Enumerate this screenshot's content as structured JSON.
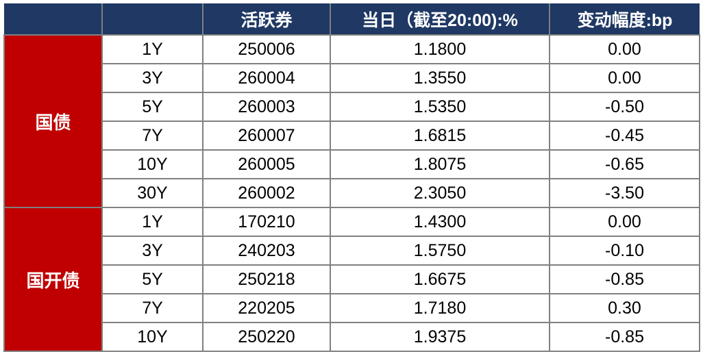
{
  "header": {
    "columns": [
      "",
      "",
      "活跃券",
      "当日（截至20:00):%",
      "变动幅度:bp"
    ]
  },
  "colors": {
    "header_bg": "#1f3864",
    "group_bg": "#c00000"
  },
  "groups": [
    {
      "name": "国债",
      "rows": [
        {
          "tenor": "1Y",
          "code": "250006",
          "yield": "1.1800",
          "change": "0.00"
        },
        {
          "tenor": "3Y",
          "code": "260004",
          "yield": "1.3550",
          "change": "0.00"
        },
        {
          "tenor": "5Y",
          "code": "260003",
          "yield": "1.5350",
          "change": "-0.50"
        },
        {
          "tenor": "7Y",
          "code": "260007",
          "yield": "1.6815",
          "change": "-0.45"
        },
        {
          "tenor": "10Y",
          "code": "260005",
          "yield": "1.8075",
          "change": "-0.65"
        },
        {
          "tenor": "30Y",
          "code": "260002",
          "yield": "2.3050",
          "change": "-3.50"
        }
      ]
    },
    {
      "name": "国开债",
      "rows": [
        {
          "tenor": "1Y",
          "code": "170210",
          "yield": "1.4300",
          "change": "0.00"
        },
        {
          "tenor": "3Y",
          "code": "240203",
          "yield": "1.5750",
          "change": "-0.10"
        },
        {
          "tenor": "5Y",
          "code": "250218",
          "yield": "1.6675",
          "change": "-0.85"
        },
        {
          "tenor": "7Y",
          "code": "220205",
          "yield": "1.7180",
          "change": "0.30"
        },
        {
          "tenor": "10Y",
          "code": "250220",
          "yield": "1.9375",
          "change": "-0.85"
        }
      ]
    }
  ]
}
